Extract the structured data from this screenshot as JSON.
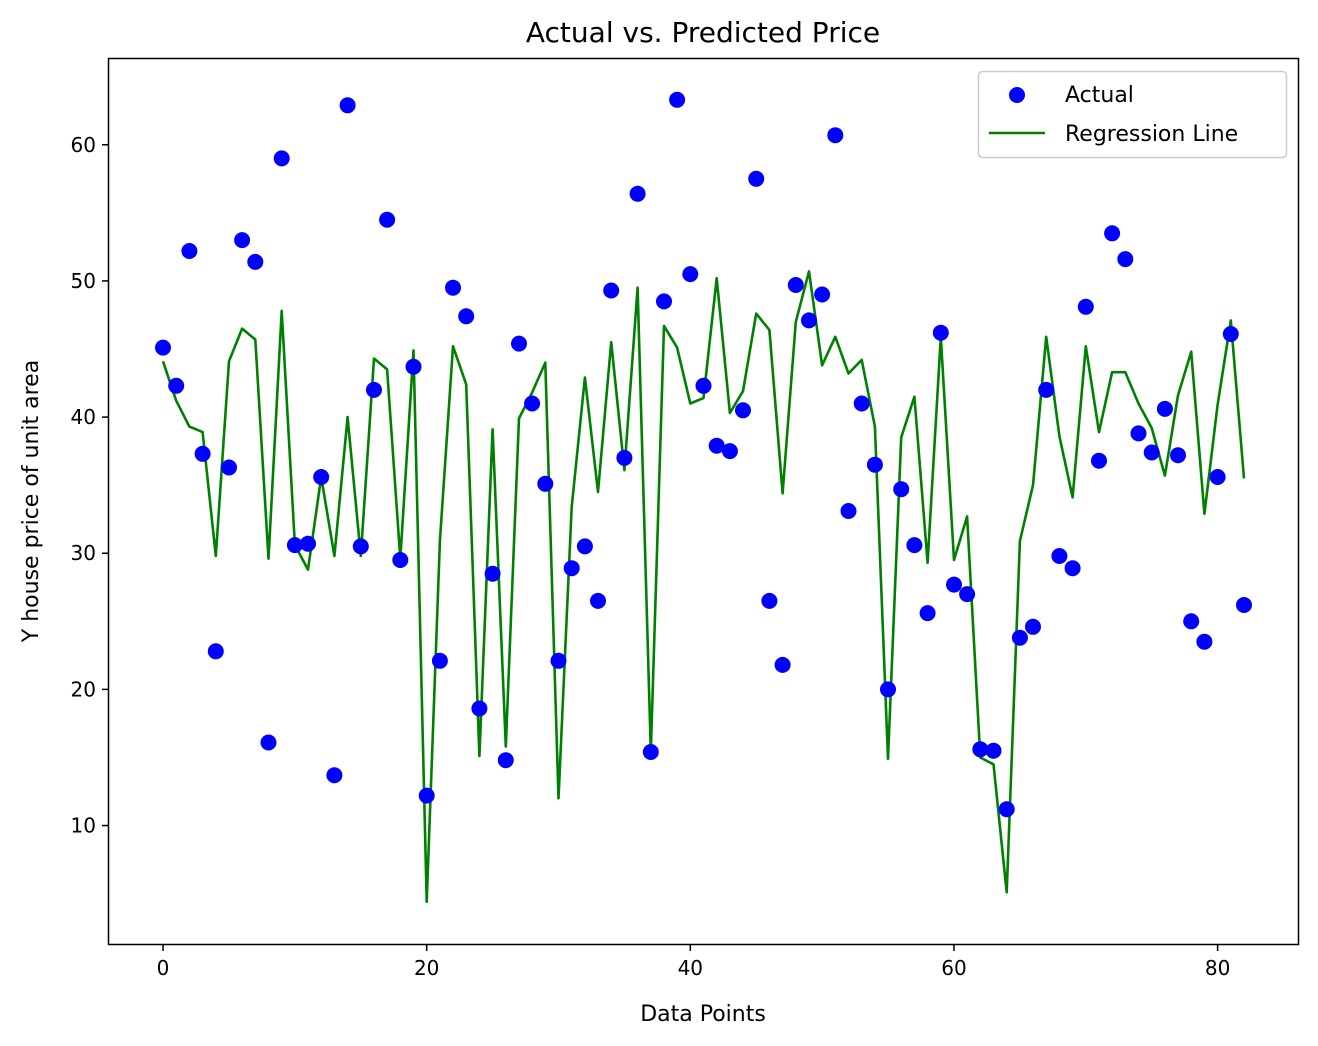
{
  "chart_data": {
    "type": "scatter",
    "title": "Actual vs. Predicted Price",
    "xlabel": "Data Points",
    "ylabel": "Y house price of unit area",
    "xlim": [
      -4.1,
      86.1
    ],
    "ylim": [
      1.3,
      66.3
    ],
    "xticks": [
      0,
      20,
      40,
      60,
      80
    ],
    "yticks": [
      10,
      20,
      30,
      40,
      50,
      60
    ],
    "grid": false,
    "legend_position": "top-right",
    "series": [
      {
        "name": "Actual",
        "kind": "scatter",
        "color": "#0000ff",
        "x": [
          0,
          1,
          2,
          3,
          4,
          5,
          6,
          7,
          8,
          9,
          10,
          11,
          12,
          13,
          14,
          15,
          16,
          17,
          18,
          19,
          20,
          21,
          22,
          23,
          24,
          25,
          26,
          27,
          28,
          29,
          30,
          31,
          32,
          33,
          34,
          35,
          36,
          37,
          38,
          39,
          40,
          41,
          42,
          43,
          44,
          45,
          46,
          47,
          48,
          49,
          50,
          51,
          52,
          53,
          54,
          55,
          56,
          57,
          58,
          59,
          60,
          61,
          62,
          63,
          64,
          65,
          66,
          67,
          68,
          69,
          70,
          71,
          72,
          73,
          74,
          75,
          76,
          77,
          78,
          79,
          80,
          81,
          82
        ],
        "values": [
          45.1,
          42.3,
          52.2,
          37.3,
          22.8,
          36.3,
          53.0,
          51.4,
          16.1,
          59.0,
          30.6,
          30.7,
          35.6,
          13.7,
          62.9,
          30.5,
          42.0,
          54.5,
          29.5,
          43.7,
          12.2,
          22.1,
          49.5,
          47.4,
          18.6,
          28.5,
          14.8,
          45.4,
          41.0,
          35.1,
          22.1,
          28.9,
          30.5,
          26.5,
          49.3,
          37.0,
          56.4,
          15.4,
          48.5,
          63.3,
          50.5,
          42.3,
          37.9,
          37.5,
          40.5,
          57.5,
          26.5,
          21.8,
          49.7,
          47.1,
          49.0,
          60.7,
          33.1,
          41.0,
          36.5,
          20.0,
          34.7,
          30.6,
          25.6,
          46.2,
          27.7,
          27.0,
          15.6,
          15.5,
          11.2,
          23.8,
          24.6,
          42.0,
          29.8,
          28.9,
          48.1,
          36.8,
          53.5,
          51.6,
          38.8,
          37.4,
          40.6,
          37.2,
          25.0,
          23.5,
          35.6,
          46.1,
          26.2
        ]
      },
      {
        "name": "Regression Line",
        "kind": "line",
        "color": "#008000",
        "x": [
          0,
          1,
          2,
          3,
          4,
          5,
          6,
          7,
          8,
          9,
          10,
          11,
          12,
          13,
          14,
          15,
          16,
          17,
          18,
          19,
          20,
          21,
          22,
          23,
          24,
          25,
          26,
          27,
          28,
          29,
          30,
          31,
          32,
          33,
          34,
          35,
          36,
          37,
          38,
          39,
          40,
          41,
          42,
          43,
          44,
          45,
          46,
          47,
          48,
          49,
          50,
          51,
          52,
          53,
          54,
          55,
          56,
          57,
          58,
          59,
          60,
          61,
          62,
          63,
          64,
          65,
          66,
          67,
          68,
          69,
          70,
          71,
          72,
          73,
          74,
          75,
          76,
          77,
          78,
          79,
          80,
          81,
          82
        ],
        "values": [
          44.1,
          41.2,
          39.3,
          38.9,
          29.8,
          44.1,
          46.5,
          45.7,
          29.6,
          47.8,
          30.6,
          28.8,
          35.6,
          29.8,
          40.0,
          29.8,
          44.3,
          43.5,
          29.6,
          44.9,
          4.4,
          30.9,
          45.2,
          42.4,
          15.1,
          39.1,
          15.8,
          39.9,
          41.8,
          44.0,
          12.0,
          33.4,
          42.9,
          34.5,
          45.5,
          36.1,
          49.5,
          15.4,
          46.7,
          45.1,
          41.0,
          41.4,
          50.2,
          40.3,
          41.9,
          47.6,
          46.4,
          34.4,
          47.0,
          50.7,
          43.8,
          45.9,
          43.2,
          44.2,
          39.3,
          14.9,
          38.5,
          41.5,
          29.3,
          45.9,
          29.5,
          32.7,
          15.0,
          14.5,
          5.1,
          30.9,
          35.0,
          45.9,
          38.6,
          34.1,
          45.2,
          38.9,
          43.3,
          43.3,
          41.0,
          39.2,
          35.7,
          41.6,
          44.8,
          32.9,
          40.9,
          47.1,
          35.5
        ]
      }
    ]
  }
}
